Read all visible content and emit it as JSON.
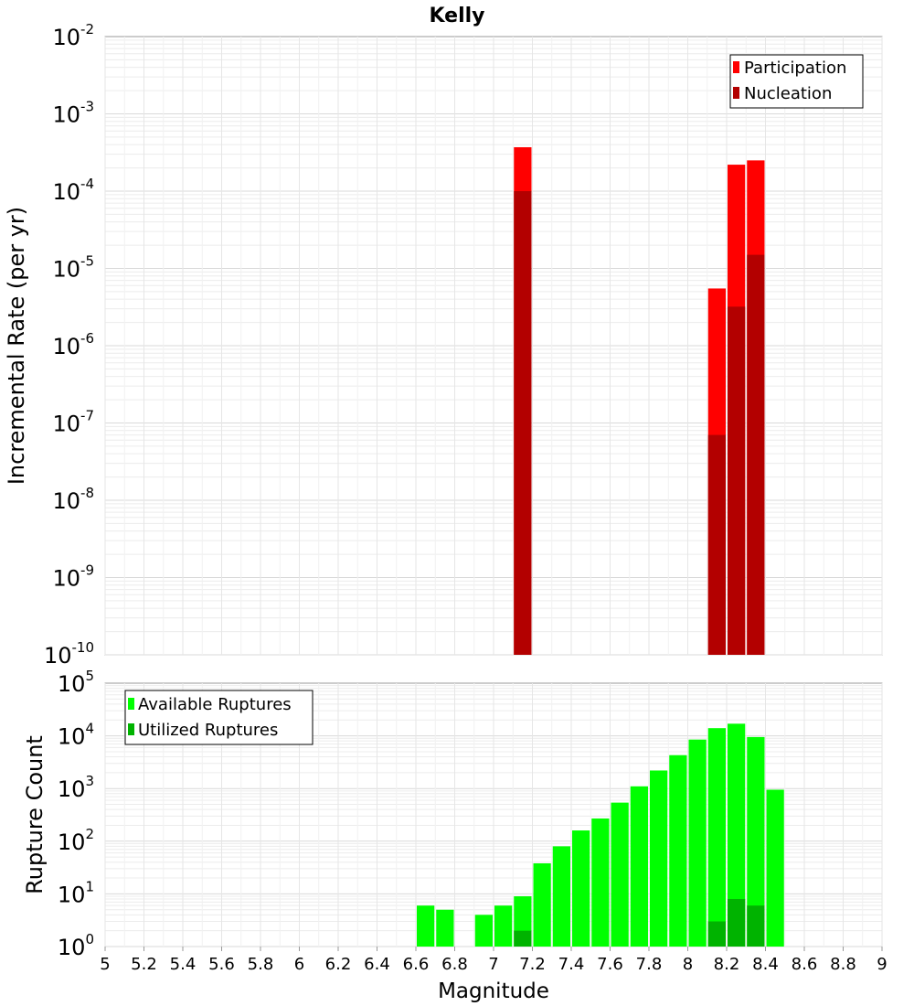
{
  "title": "Kelly",
  "xlabel": "Magnitude",
  "x_ticks": [
    "5",
    "5.2",
    "5.4",
    "5.6",
    "5.8",
    "6",
    "6.2",
    "6.4",
    "6.6",
    "6.8",
    "7",
    "7.2",
    "7.4",
    "7.6",
    "7.8",
    "8",
    "8.2",
    "8.4",
    "8.6",
    "8.8",
    "9"
  ],
  "chart_data": [
    {
      "type": "bar",
      "scale": "log",
      "ylabel": "Incremental Rate (per yr)",
      "xlim": [
        5,
        9
      ],
      "ylim_exponents": [
        -10,
        -2
      ],
      "y_ticks": [
        {
          "base": "10",
          "exp": "-2"
        },
        {
          "base": "10",
          "exp": "-3"
        },
        {
          "base": "10",
          "exp": "-4"
        },
        {
          "base": "10",
          "exp": "-5"
        },
        {
          "base": "10",
          "exp": "-6"
        },
        {
          "base": "10",
          "exp": "-7"
        },
        {
          "base": "10",
          "exp": "-8"
        },
        {
          "base": "10",
          "exp": "-9"
        },
        {
          "base": "10",
          "exp": "-10"
        }
      ],
      "legend": [
        "Participation",
        "Nucleation"
      ],
      "legend_position": "top-right",
      "colors": {
        "Participation": "#ff0000",
        "Nucleation": "#b30000"
      },
      "x": [
        7.15,
        8.15,
        8.25,
        8.35
      ],
      "series": [
        {
          "name": "Participation",
          "values": [
            0.00037,
            5.5e-06,
            0.00022,
            0.00025
          ]
        },
        {
          "name": "Nucleation",
          "values": [
            0.0001,
            7e-08,
            3.2e-06,
            1.5e-05
          ]
        }
      ]
    },
    {
      "type": "bar",
      "scale": "log",
      "ylabel": "Rupture Count",
      "xlim": [
        5,
        9
      ],
      "ylim_exponents": [
        0,
        5
      ],
      "y_ticks": [
        {
          "base": "10",
          "exp": "5"
        },
        {
          "base": "10",
          "exp": "4"
        },
        {
          "base": "10",
          "exp": "3"
        },
        {
          "base": "10",
          "exp": "2"
        },
        {
          "base": "10",
          "exp": "1"
        },
        {
          "base": "10",
          "exp": "0"
        }
      ],
      "legend": [
        "Available Ruptures",
        "Utilized Ruptures"
      ],
      "legend_position": "top-left",
      "colors": {
        "Available Ruptures": "#00ff00",
        "Utilized Ruptures": "#00b300"
      },
      "x": [
        6.65,
        6.75,
        6.85,
        6.95,
        7.05,
        7.15,
        7.25,
        7.35,
        7.45,
        7.55,
        7.65,
        7.75,
        7.85,
        7.95,
        8.05,
        8.15,
        8.25,
        8.35,
        8.45
      ],
      "series": [
        {
          "name": "Available Ruptures",
          "values": [
            6,
            5,
            0,
            4,
            6,
            9,
            38,
            80,
            160,
            270,
            540,
            1100,
            2200,
            4300,
            8500,
            14000,
            17000,
            9500,
            950
          ]
        },
        {
          "name": "Utilized Ruptures",
          "values": [
            0,
            0,
            0,
            0,
            0,
            2,
            0,
            0,
            0,
            0,
            0,
            0,
            0,
            0,
            0,
            3,
            8,
            6,
            0
          ]
        }
      ]
    }
  ]
}
